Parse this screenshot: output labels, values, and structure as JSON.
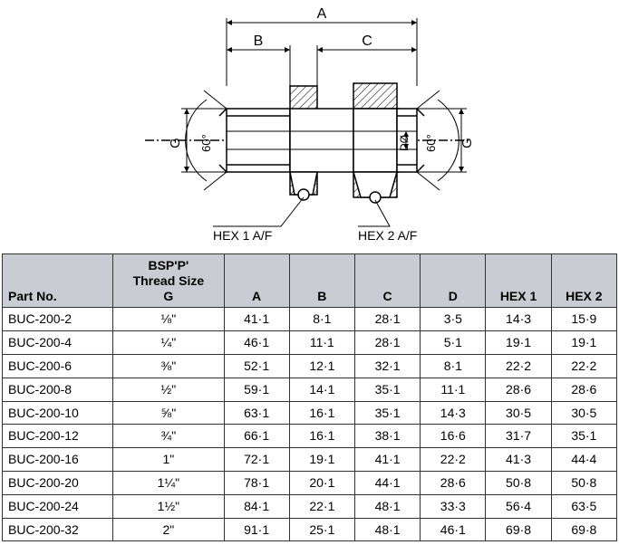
{
  "diagram": {
    "type": "engineering-drawing",
    "stroke_color": "#000000",
    "fill_hatch_color": "#000000",
    "background": "#ffffff",
    "dims": {
      "A": "A",
      "B": "B",
      "C": "C",
      "D": "DØ",
      "G_left": "G",
      "G_right": "G",
      "angle_left": "60°",
      "angle_right": "60°",
      "hex1": "HEX 1 A/F",
      "hex2": "HEX 2 A/F"
    }
  },
  "table": {
    "header_bg": "#c9ccd2",
    "columns": [
      {
        "key": "part",
        "label": "Part No."
      },
      {
        "key": "g",
        "label_line1": "BSP'P'",
        "label_line2": "Thread Size",
        "label_line3": "G"
      },
      {
        "key": "a",
        "label": "A"
      },
      {
        "key": "b",
        "label": "B"
      },
      {
        "key": "c",
        "label": "C"
      },
      {
        "key": "d",
        "label": "D"
      },
      {
        "key": "h1",
        "label": "HEX 1"
      },
      {
        "key": "h2",
        "label": "HEX 2"
      }
    ],
    "rows": [
      {
        "part": "BUC-200-2",
        "g": "⅛\"",
        "a": "41·1",
        "b": "8·1",
        "c": "28·1",
        "d": "3·5",
        "h1": "14·3",
        "h2": "15·9"
      },
      {
        "part": "BUC-200-4",
        "g": "¼\"",
        "a": "46·1",
        "b": "11·1",
        "c": "28·1",
        "d": "5·1",
        "h1": "19·1",
        "h2": "19·1"
      },
      {
        "part": "BUC-200-6",
        "g": "⅜\"",
        "a": "52·1",
        "b": "12·1",
        "c": "32·1",
        "d": "8·1",
        "h1": "22·2",
        "h2": "22·2"
      },
      {
        "part": "BUC-200-8",
        "g": "½\"",
        "a": "59·1",
        "b": "14·1",
        "c": "35·1",
        "d": "11·1",
        "h1": "28·6",
        "h2": "28·6"
      },
      {
        "part": "BUC-200-10",
        "g": "⅝\"",
        "a": "63·1",
        "b": "16·1",
        "c": "35·1",
        "d": "14·3",
        "h1": "30·5",
        "h2": "30·5"
      },
      {
        "part": "BUC-200-12",
        "g": "¾\"",
        "a": "66·1",
        "b": "16·1",
        "c": "38·1",
        "d": "16·6",
        "h1": "31·7",
        "h2": "35·1"
      },
      {
        "part": "BUC-200-16",
        "g": "1\"",
        "a": "72·1",
        "b": "19·1",
        "c": "41·1",
        "d": "22·2",
        "h1": "41·3",
        "h2": "44·4"
      },
      {
        "part": "BUC-200-20",
        "g": "1¼\"",
        "a": "78·1",
        "b": "20·1",
        "c": "44·1",
        "d": "28·6",
        "h1": "50·8",
        "h2": "50·8"
      },
      {
        "part": "BUC-200-24",
        "g": "1½\"",
        "a": "84·1",
        "b": "22·1",
        "c": "48·1",
        "d": "33·3",
        "h1": "56·4",
        "h2": "63·5"
      },
      {
        "part": "BUC-200-32",
        "g": "2\"",
        "a": "91·1",
        "b": "25·1",
        "c": "48·1",
        "d": "46·1",
        "h1": "69·8",
        "h2": "69·8"
      }
    ]
  }
}
